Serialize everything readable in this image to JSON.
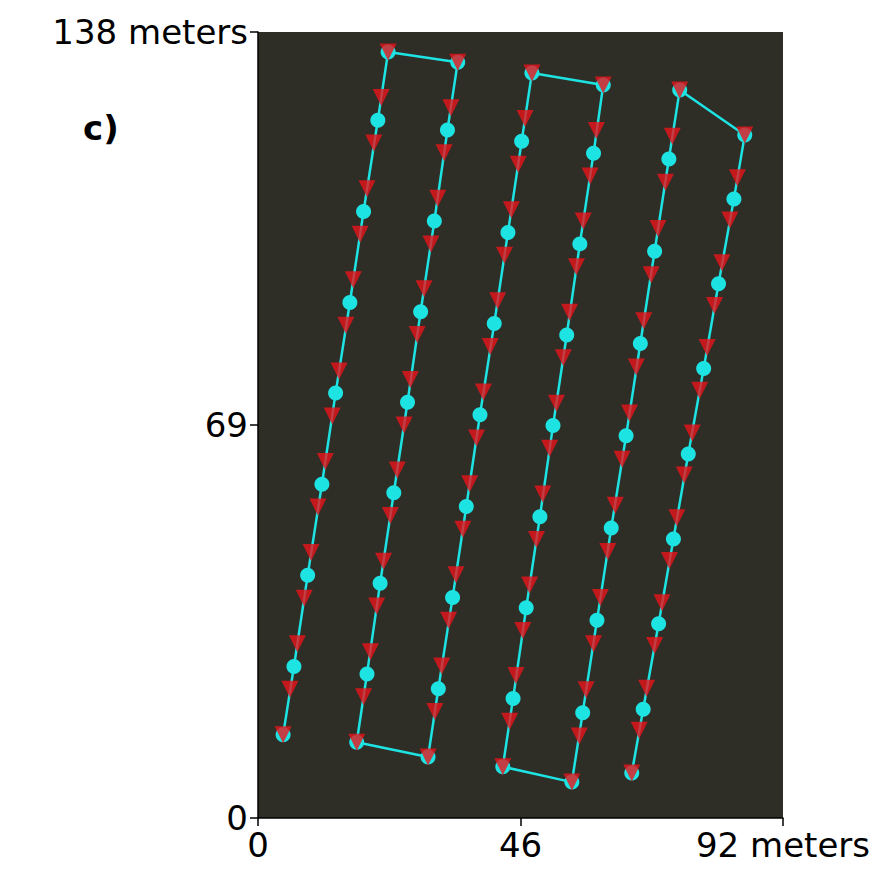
{
  "chart_data": {
    "type": "scatter",
    "annotations": [
      "c)"
    ],
    "xlim": [
      0,
      92
    ],
    "xticks": [
      0,
      46,
      {
        "value": 92,
        "label": "92 meters"
      }
    ],
    "ylim": [
      0,
      138
    ],
    "yticks": [
      0,
      69,
      {
        "value": 138,
        "label": "138 meters"
      }
    ],
    "grid": false,
    "series": [
      {
        "type": "line",
        "color": "#1ee3e3",
        "marker": "circle",
        "line_style": "solid",
        "x": [
          4.4,
          6.3,
          8.7,
          11.2,
          13.6,
          16.1,
          18.5,
          21.0,
          22.8,
          35.0,
          33.2,
          30.9,
          28.5,
          26.2,
          23.8,
          21.4,
          19.1,
          17.3,
          29.8,
          31.6,
          34.1,
          36.5,
          38.9,
          41.4,
          43.8,
          46.2,
          48.0,
          60.5,
          58.8,
          56.4,
          54.1,
          51.7,
          49.4,
          47.0,
          44.7,
          42.9,
          55.0,
          56.9,
          59.4,
          61.9,
          64.5,
          67.0,
          69.5,
          72.0,
          73.9,
          85.3,
          83.4,
          80.7,
          78.1,
          75.4,
          72.8,
          70.2,
          67.5,
          65.5
        ],
        "y": [
          14.6,
          26.6,
          42.6,
          58.6,
          74.6,
          90.5,
          106.5,
          122.5,
          134.5,
          132.7,
          120.8,
          104.8,
          88.9,
          73.0,
          57.1,
          41.2,
          25.3,
          13.3,
          10.7,
          22.7,
          38.7,
          54.7,
          70.8,
          86.8,
          102.8,
          118.8,
          130.8,
          128.7,
          116.7,
          100.8,
          84.8,
          68.9,
          52.9,
          36.9,
          21.0,
          9.0,
          6.3,
          18.5,
          34.7,
          50.9,
          67.1,
          83.3,
          99.5,
          115.7,
          127.8,
          119.9,
          108.7,
          93.8,
          78.9,
          63.9,
          49.0,
          34.1,
          19.1,
          7.9
        ]
      },
      {
        "type": "scatter",
        "color": "#e8141c",
        "marker": "triangle_down",
        "x": [
          4.4,
          5.6,
          6.9,
          8.1,
          9.3,
          10.5,
          11.8,
          13.0,
          14.2,
          15.4,
          16.7,
          17.9,
          19.1,
          20.3,
          21.6,
          22.8,
          35.0,
          33.8,
          32.6,
          31.5,
          30.3,
          29.1,
          27.9,
          26.7,
          25.6,
          24.4,
          23.2,
          22.0,
          20.8,
          19.7,
          18.5,
          17.3,
          29.8,
          31.0,
          32.2,
          33.4,
          34.7,
          35.9,
          37.1,
          38.3,
          39.5,
          40.7,
          42.0,
          43.2,
          44.4,
          45.6,
          46.8,
          48.0,
          60.5,
          59.3,
          58.2,
          57.0,
          55.8,
          54.6,
          53.5,
          52.3,
          51.1,
          49.9,
          48.8,
          47.6,
          46.4,
          45.2,
          44.1,
          42.9,
          55.0,
          56.3,
          57.5,
          58.8,
          60.0,
          61.3,
          62.6,
          63.8,
          65.1,
          66.3,
          67.6,
          68.9,
          70.1,
          71.4,
          72.6,
          73.9,
          85.3,
          84.0,
          82.7,
          81.3,
          80.0,
          78.7,
          77.4,
          76.1,
          74.7,
          73.4,
          72.1,
          70.8,
          69.5,
          68.1,
          66.8,
          65.5
        ],
        "y": [
          14.6,
          22.6,
          30.6,
          38.6,
          46.6,
          54.6,
          62.6,
          70.6,
          78.5,
          86.5,
          94.5,
          102.5,
          110.5,
          118.5,
          126.5,
          134.5,
          132.7,
          124.7,
          116.8,
          108.8,
          100.8,
          92.9,
          84.9,
          77.0,
          69.0,
          61.1,
          53.1,
          45.1,
          37.2,
          29.2,
          21.3,
          13.3,
          10.7,
          18.7,
          26.7,
          34.7,
          42.7,
          50.7,
          58.7,
          66.7,
          74.8,
          82.8,
          90.8,
          98.8,
          106.8,
          114.8,
          122.8,
          130.8,
          128.7,
          120.7,
          112.7,
          104.8,
          96.8,
          88.8,
          80.8,
          72.8,
          64.9,
          56.9,
          48.9,
          40.9,
          32.9,
          25.0,
          17.0,
          9.0,
          6.3,
          14.4,
          22.5,
          30.6,
          38.7,
          46.8,
          54.9,
          63.0,
          71.1,
          79.2,
          87.3,
          95.4,
          103.5,
          111.6,
          119.7,
          127.8,
          119.9,
          112.4,
          105.0,
          97.5,
          90.0,
          82.6,
          75.1,
          67.6,
          60.2,
          52.7,
          45.2,
          37.8,
          30.3,
          22.8,
          15.4,
          7.9
        ]
      }
    ]
  }
}
